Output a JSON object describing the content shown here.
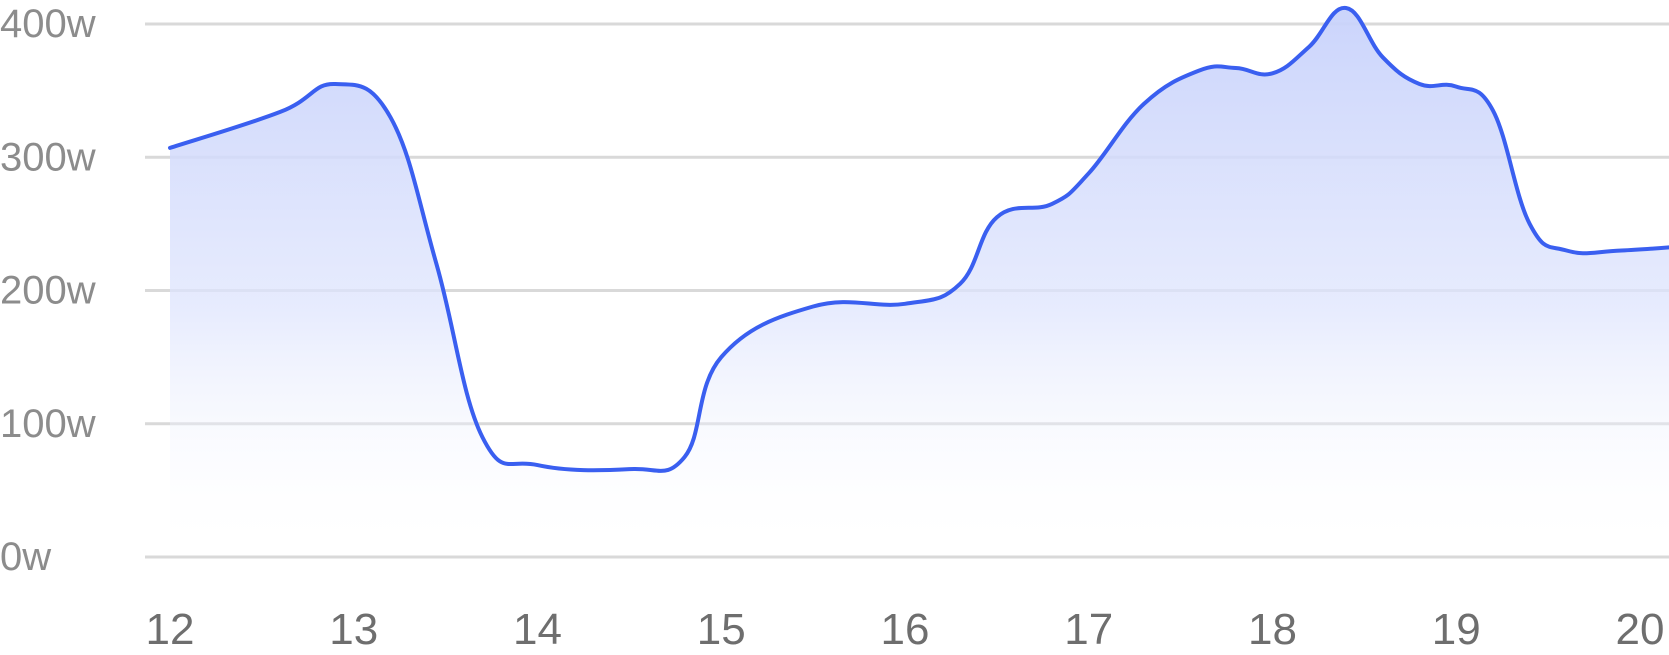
{
  "chart_data": {
    "type": "area",
    "title": "",
    "xlabel": "",
    "ylabel": "",
    "grid": true,
    "xlim": [
      12,
      20.4
    ],
    "ylim": [
      0,
      400
    ],
    "x_ticks": [
      "12",
      "13",
      "14",
      "15",
      "16",
      "17",
      "18",
      "19",
      "20"
    ],
    "y_ticks": [
      "0w",
      "100w",
      "200w",
      "300w",
      "400w"
    ],
    "series": [
      {
        "x": [
          12.0,
          12.6,
          12.9,
          13.2,
          13.45,
          13.7,
          14.0,
          14.5,
          14.8,
          15.0,
          15.5,
          16.0,
          16.3,
          16.5,
          16.8,
          17.0,
          17.3,
          17.6,
          17.8,
          18.0,
          18.2,
          18.4,
          18.6,
          18.8,
          19.0,
          19.2,
          19.4,
          19.6,
          19.9,
          20.4
        ],
        "values": [
          307,
          334,
          355,
          330,
          220,
          90,
          69,
          66,
          75,
          150,
          188,
          190,
          205,
          255,
          265,
          288,
          340,
          365,
          367,
          363,
          383,
          412,
          375,
          355,
          353,
          335,
          250,
          230,
          230,
          235
        ]
      }
    ],
    "colors": {
      "line": "#3a5ff0",
      "fill_top": "#c8d2fb",
      "grid": "#d9d9d9",
      "y_tick_text": "#8c8c8c",
      "x_tick_text": "#6e6e6e"
    }
  }
}
